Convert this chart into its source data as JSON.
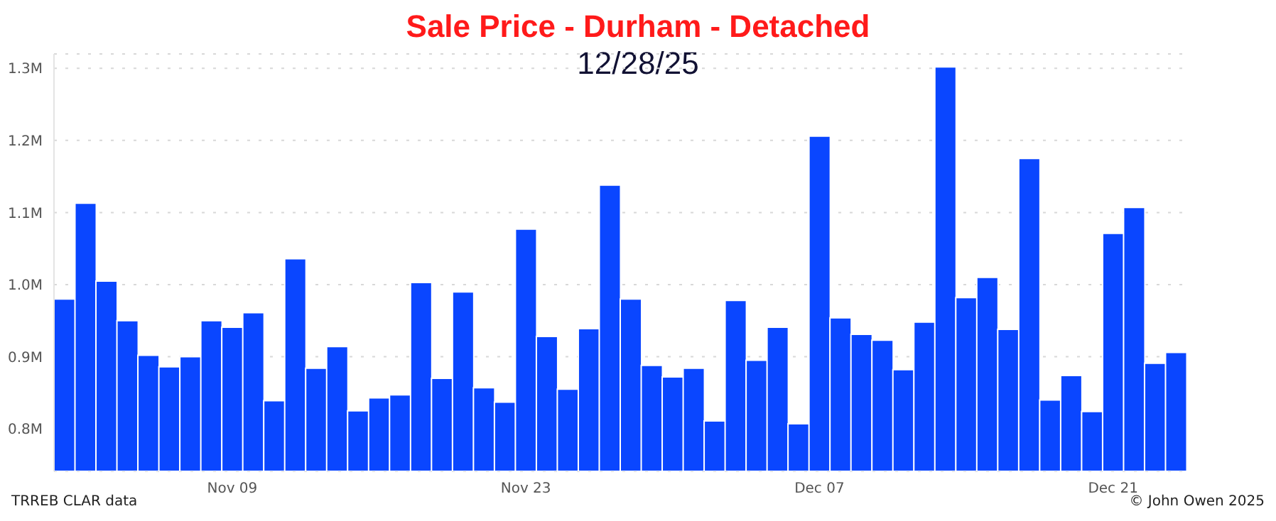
{
  "chart_data": {
    "type": "bar",
    "title": "Sale Price - Durham - Detached",
    "subtitle": "12/28/25",
    "categories": [
      null,
      null,
      null,
      null,
      null,
      null,
      null,
      null,
      "Nov 09",
      null,
      null,
      null,
      null,
      null,
      null,
      null,
      null,
      null,
      null,
      null,
      null,
      null,
      "Nov 23",
      null,
      null,
      null,
      null,
      null,
      null,
      null,
      null,
      null,
      null,
      null,
      null,
      null,
      "Dec 07",
      null,
      null,
      null,
      null,
      null,
      null,
      null,
      null,
      null,
      null,
      null,
      null,
      null,
      "Dec 21",
      null,
      null,
      null
    ],
    "values": [
      0.98,
      1.113,
      1.005,
      0.95,
      0.902,
      0.886,
      0.9,
      0.95,
      0.941,
      0.961,
      0.839,
      1.036,
      0.884,
      0.914,
      0.825,
      0.843,
      0.847,
      1.003,
      0.87,
      0.99,
      0.857,
      0.837,
      1.077,
      0.928,
      0.855,
      0.939,
      1.138,
      0.98,
      0.888,
      0.872,
      0.884,
      0.811,
      0.978,
      0.895,
      0.941,
      0.807,
      1.206,
      0.954,
      0.931,
      0.923,
      0.882,
      0.948,
      1.302,
      0.982,
      1.01,
      0.938,
      1.175,
      0.84,
      0.874,
      0.824,
      1.071,
      1.107,
      0.891,
      0.906
    ],
    "color": "#0a46ff",
    "ylim": [
      0.741,
      1.32
    ],
    "yticks": [
      {
        "value": 0.8,
        "label": "0.8M"
      },
      {
        "value": 0.9,
        "label": "0.9M"
      },
      {
        "value": 1.0,
        "label": "1.0M"
      },
      {
        "value": 1.1,
        "label": "1.1M"
      },
      {
        "value": 1.2,
        "label": "1.2M"
      },
      {
        "value": 1.3,
        "label": "1.3M"
      }
    ],
    "grid": "y",
    "annotations": [
      "TRREB CLAR data",
      "© John Owen 2025"
    ]
  }
}
